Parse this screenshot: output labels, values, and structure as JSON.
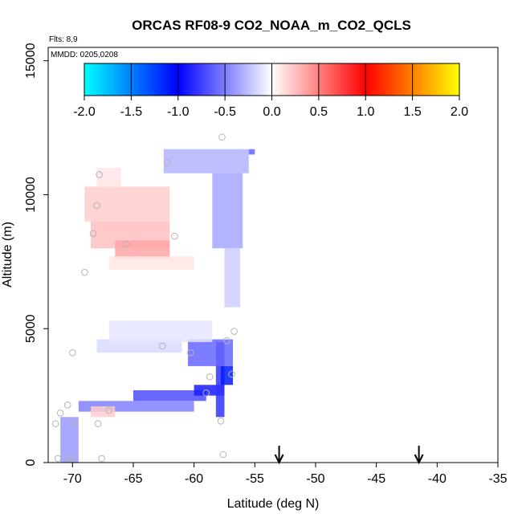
{
  "chart_data": {
    "type": "heatmap",
    "title": "ORCAS RF08-9 CO2_NOAA_m_CO2_QCLS",
    "flights_note": "Flts: 8,9",
    "dates_note": "MMDD: 0205,0208",
    "xlabel": "Latitude (deg N)",
    "ylabel": "Altitude (m)",
    "xlim": [
      -72,
      -35
    ],
    "ylim": [
      0,
      15500
    ],
    "xticks": [
      -70,
      -65,
      -60,
      -55,
      -50,
      -45,
      -40,
      -35
    ],
    "xtick_labels": [
      "-70",
      "-65",
      "-60",
      "-55",
      "-50",
      "-45",
      "-40",
      "-35"
    ],
    "yticks": [
      0,
      5000,
      10000,
      15000
    ],
    "ytick_labels": [
      "0",
      "5000",
      "10000",
      "15000"
    ],
    "colorbar": {
      "range": [
        -2.0,
        2.0
      ],
      "ticks": [
        "-2.0",
        "-1.5",
        "-1.0",
        "-0.5",
        "0.0",
        "0.5",
        "1.0",
        "1.5",
        "2.0"
      ],
      "colors": [
        "#00ffff",
        "#0000ff",
        "#ffffff",
        "#ff0000",
        "#ffff00"
      ]
    },
    "cells": [
      {
        "lat": [
          -71.0,
          -69.5
        ],
        "alt": [
          0,
          1700
        ],
        "value": -0.4
      },
      {
        "lat": [
          -69.5,
          -60.0
        ],
        "alt": [
          1900,
          2300
        ],
        "value": -0.5
      },
      {
        "lat": [
          -65.0,
          -59.0
        ],
        "alt": [
          2300,
          2700
        ],
        "value": -0.7
      },
      {
        "lat": [
          -60.0,
          -57.5
        ],
        "alt": [
          2500,
          2900
        ],
        "value": -0.9
      },
      {
        "lat": [
          -58.2,
          -57.5
        ],
        "alt": [
          1700,
          4500
        ],
        "value": -0.8
      },
      {
        "lat": [
          -57.8,
          -56.8
        ],
        "alt": [
          2900,
          3600
        ],
        "value": -1.1
      },
      {
        "lat": [
          -60.5,
          -56.8
        ],
        "alt": [
          3600,
          4600
        ],
        "value": -0.6
      },
      {
        "lat": [
          -68.0,
          -61.0
        ],
        "alt": [
          4100,
          4600
        ],
        "value": -0.15
      },
      {
        "lat": [
          -67.0,
          -58.5
        ],
        "alt": [
          4500,
          5300
        ],
        "value": -0.1
      },
      {
        "lat": [
          -68.5,
          -66.5
        ],
        "alt": [
          1700,
          2100
        ],
        "value": 0.2
      },
      {
        "lat": [
          -69.0,
          -62.0
        ],
        "alt": [
          9000,
          10300
        ],
        "value": 0.2
      },
      {
        "lat": [
          -68.5,
          -62.0
        ],
        "alt": [
          8000,
          9000
        ],
        "value": 0.25
      },
      {
        "lat": [
          -66.5,
          -62.0
        ],
        "alt": [
          7600,
          8300
        ],
        "value": 0.35
      },
      {
        "lat": [
          -67.0,
          -60.0
        ],
        "alt": [
          7200,
          7700
        ],
        "value": 0.1
      },
      {
        "lat": [
          -68.0,
          -66.0
        ],
        "alt": [
          10300,
          11000
        ],
        "value": 0.1
      },
      {
        "lat": [
          -62.5,
          -55.5
        ],
        "alt": [
          10800,
          11700
        ],
        "value": -0.3
      },
      {
        "lat": [
          -58.5,
          -56.0
        ],
        "alt": [
          8000,
          10800
        ],
        "value": -0.35
      },
      {
        "lat": [
          -57.5,
          -56.2
        ],
        "alt": [
          5800,
          8000
        ],
        "value": -0.2
      },
      {
        "lat": [
          -55.5,
          -55.0
        ],
        "alt": [
          11500,
          11700
        ],
        "value": -0.6
      }
    ],
    "points": [
      {
        "lat": -70.3,
        "alt": 150
      },
      {
        "lat": -71.2,
        "alt": 150
      },
      {
        "lat": -70.0,
        "alt": 120
      },
      {
        "lat": -67.6,
        "alt": 150
      },
      {
        "lat": -71.4,
        "alt": 1450
      },
      {
        "lat": -69.9,
        "alt": 1450
      },
      {
        "lat": -67.9,
        "alt": 1450
      },
      {
        "lat": -71.0,
        "alt": 1850
      },
      {
        "lat": -70.4,
        "alt": 2150
      },
      {
        "lat": -67.0,
        "alt": 1950
      },
      {
        "lat": -70.0,
        "alt": 4100
      },
      {
        "lat": -62.6,
        "alt": 4350
      },
      {
        "lat": -60.3,
        "alt": 4100
      },
      {
        "lat": -57.3,
        "alt": 4550
      },
      {
        "lat": -56.7,
        "alt": 4900
      },
      {
        "lat": -58.7,
        "alt": 3200
      },
      {
        "lat": -59.0,
        "alt": 2600
      },
      {
        "lat": -56.9,
        "alt": 3300
      },
      {
        "lat": -57.8,
        "alt": 1550
      },
      {
        "lat": -57.6,
        "alt": 300
      },
      {
        "lat": -69.0,
        "alt": 7100
      },
      {
        "lat": -65.6,
        "alt": 8150
      },
      {
        "lat": -61.6,
        "alt": 8450
      },
      {
        "lat": -68.3,
        "alt": 8550
      },
      {
        "lat": -68.0,
        "alt": 9600
      },
      {
        "lat": -67.8,
        "alt": 10750
      },
      {
        "lat": -62.2,
        "alt": 11200
      },
      {
        "lat": -57.7,
        "alt": 12150
      }
    ],
    "arrows": [
      -53.0,
      -41.5
    ]
  }
}
